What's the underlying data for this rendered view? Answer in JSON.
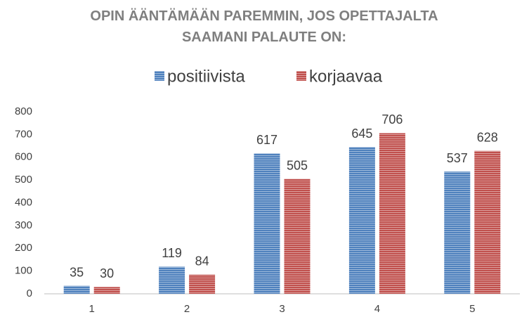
{
  "chart_data": {
    "type": "bar",
    "title": "OPIN ÄÄNTÄMÄÄN PAREMMIN, JOS OPETTAJALTA SAAMANI PALAUTE ON:",
    "categories": [
      "1",
      "2",
      "3",
      "4",
      "5"
    ],
    "series": [
      {
        "name": "positiivista",
        "color": "#4f81bd",
        "values": [
          35,
          119,
          617,
          645,
          537
        ]
      },
      {
        "name": "korjaavaa",
        "color": "#c0504d",
        "values": [
          30,
          84,
          505,
          706,
          628
        ]
      }
    ],
    "ylim": [
      0,
      800
    ],
    "yticks": [
      0,
      100,
      200,
      300,
      400,
      500,
      600,
      700,
      800
    ],
    "grid": false,
    "legend": "top"
  }
}
